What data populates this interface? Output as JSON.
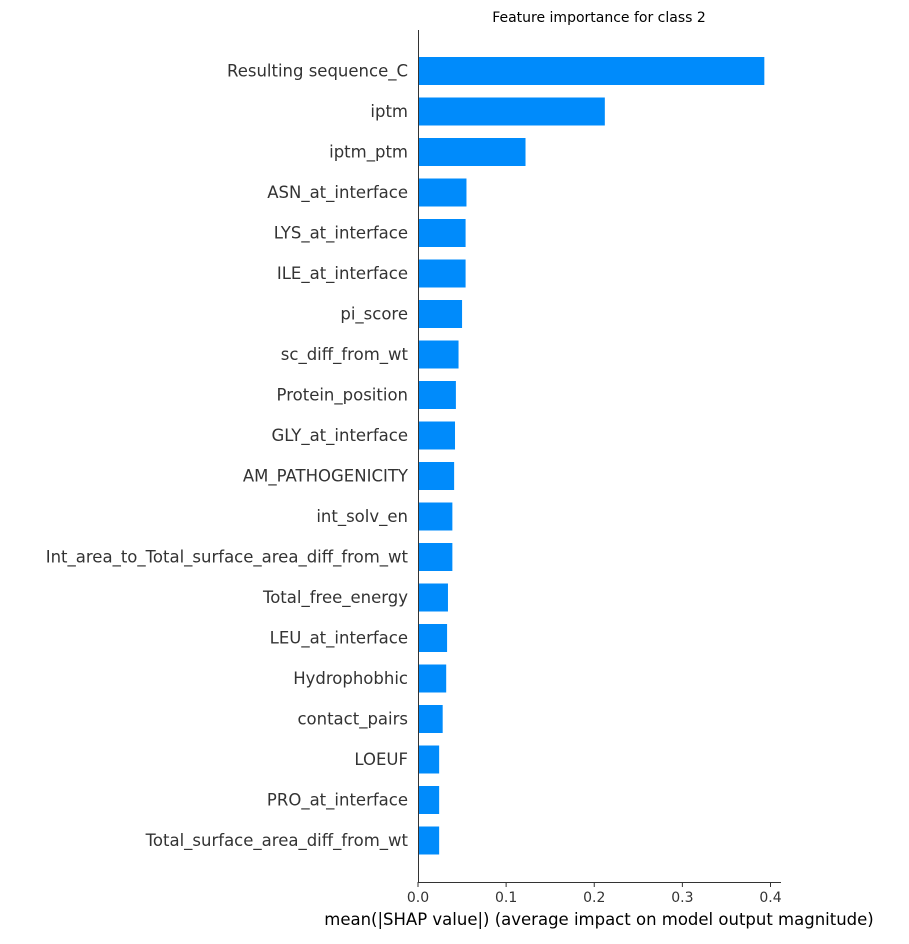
{
  "chart_data": {
    "type": "bar",
    "orientation": "horizontal",
    "title": "Feature importance for class 2",
    "xlabel": "mean(|SHAP value|) (average impact on model output magnitude)",
    "ylabel": "",
    "xlim": [
      0,
      0.41
    ],
    "xticks": [
      0.0,
      0.1,
      0.2,
      0.3,
      0.4
    ],
    "xtick_labels": [
      "0.0",
      "0.1",
      "0.2",
      "0.3",
      "0.4"
    ],
    "grid": false,
    "bar_color": "#008bfb",
    "categories": [
      "Resulting sequence_C",
      "iptm",
      "iptm_ptm",
      "ASN_at_interface",
      "LYS_at_interface",
      "ILE_at_interface",
      "pi_score",
      "sc_diff_from_wt",
      "Protein_position",
      "GLY_at_interface",
      "AM_PATHOGENICITY",
      "int_solv_en",
      "Int_area_to_Total_surface_area_diff_from_wt",
      "Total_free_energy",
      "LEU_at_interface",
      "Hydrophobhic",
      "contact_pairs",
      "LOEUF",
      "PRO_at_interface",
      "Total_surface_area_diff_from_wt"
    ],
    "values": [
      0.393,
      0.212,
      0.122,
      0.055,
      0.054,
      0.054,
      0.05,
      0.046,
      0.043,
      0.042,
      0.041,
      0.039,
      0.039,
      0.034,
      0.033,
      0.032,
      0.028,
      0.024,
      0.024,
      0.024
    ]
  }
}
